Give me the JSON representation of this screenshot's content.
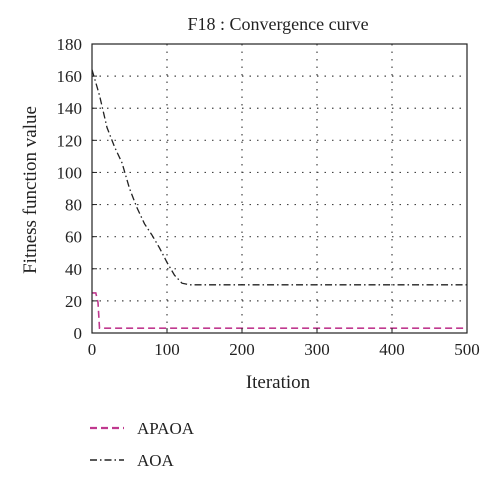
{
  "chart_data": {
    "type": "line",
    "title": "F18 : Convergence curve",
    "xlabel": "Iteration",
    "ylabel": "Fitness function value",
    "xlim": [
      0,
      500
    ],
    "ylim": [
      0,
      180
    ],
    "xticks": [
      0,
      100,
      200,
      300,
      400,
      500
    ],
    "yticks": [
      0,
      20,
      40,
      60,
      80,
      100,
      120,
      140,
      160,
      180
    ],
    "grid": true,
    "legend": "below",
    "series": [
      {
        "name": "APAOA",
        "color": "#c0398f",
        "dash": "dashed",
        "x": [
          0,
          5,
          8,
          10,
          500
        ],
        "y": [
          25,
          25,
          19,
          3,
          3
        ]
      },
      {
        "name": "AOA",
        "color": "#222222",
        "dash": "dash-dot",
        "x": [
          0,
          10,
          20,
          30,
          40,
          50,
          60,
          70,
          80,
          90,
          100,
          110,
          120,
          130,
          200,
          300,
          400,
          500
        ],
        "y": [
          164,
          148,
          128,
          116,
          106,
          90,
          78,
          68,
          61,
          53,
          44,
          36,
          31,
          30,
          30,
          30,
          30,
          30
        ]
      }
    ]
  }
}
